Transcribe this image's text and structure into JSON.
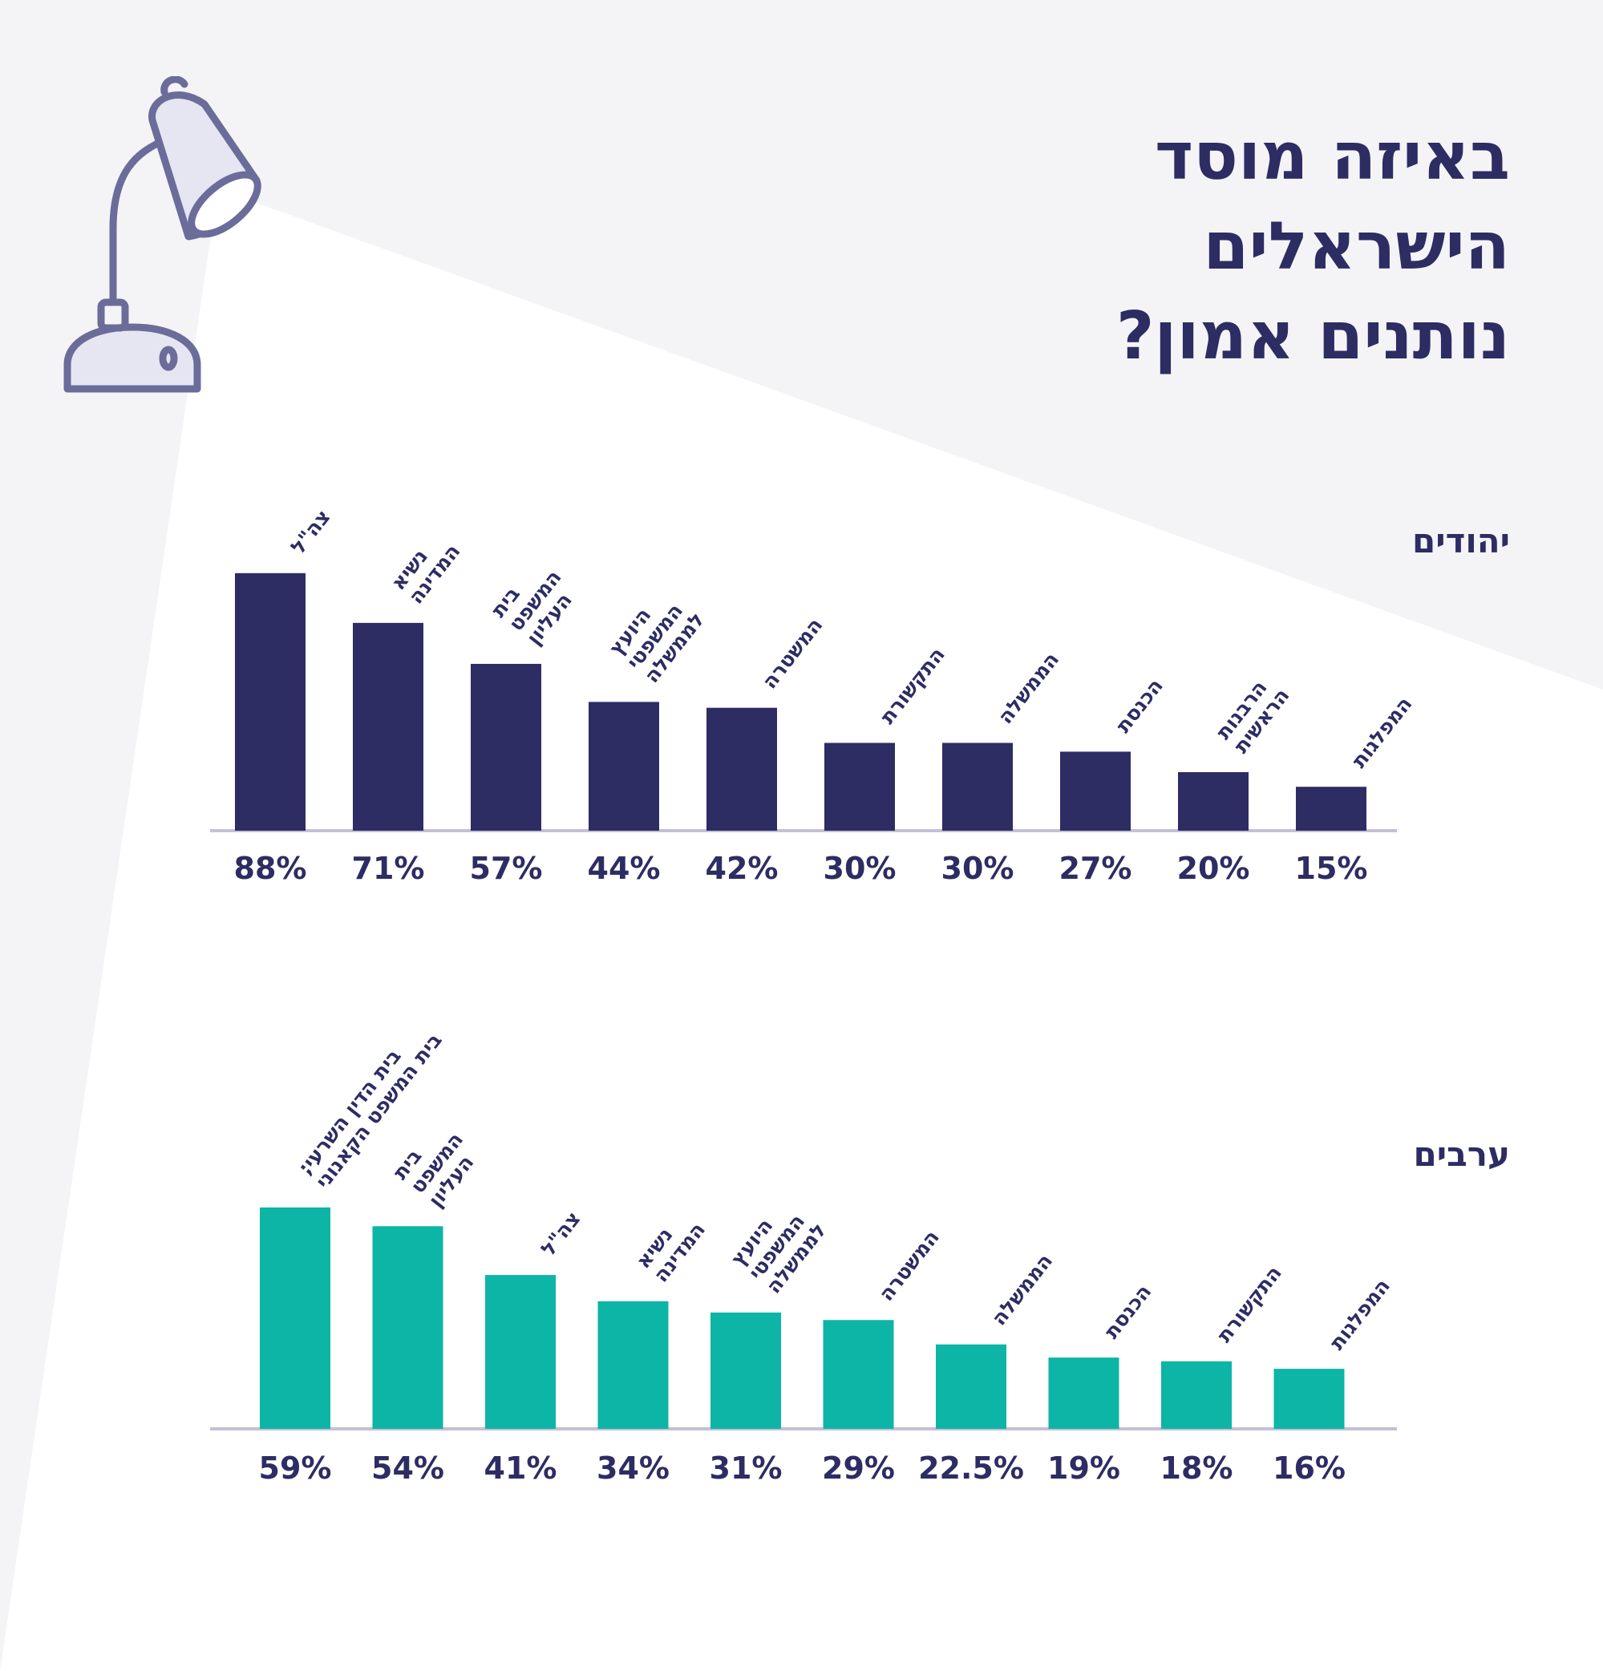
{
  "title_lines": [
    "באיזה מוסד",
    "הישראלים",
    "נותנים אמון?"
  ],
  "colors": {
    "background": "#f4f4f7",
    "beam": "#ffffff",
    "navy": "#2d2c63",
    "teal": "#0db5a6",
    "baseline": "#c4c0d8",
    "lamp_stroke": "#6b6c9a",
    "lamp_fill": "#e6e6f2"
  },
  "icons": [
    "desk-lamp-icon"
  ],
  "chart_data": [
    {
      "type": "bar",
      "group": "יהודים",
      "color": "#2d2c63",
      "categories": [
        "צה\"ל",
        "נשיא המדינה",
        "בית המשפט העליון",
        "היועץ המשפטי לממשלה",
        "המשטרה",
        "התקשורת",
        "הממשלה",
        "הכנסת",
        "הרבנות הראשית",
        "המפלגות"
      ],
      "label_lines": [
        [
          "צה\"ל"
        ],
        [
          "נשיא",
          "המדינה"
        ],
        [
          "בית",
          "המשפט",
          "העליון"
        ],
        [
          "היועץ",
          "המשפטי",
          "לממשלה"
        ],
        [
          "המשטרה"
        ],
        [
          "התקשורת"
        ],
        [
          "הממשלה"
        ],
        [
          "הכנסת"
        ],
        [
          "הרבנות",
          "הראשית"
        ],
        [
          "המפלגות"
        ]
      ],
      "values": [
        88,
        71,
        57,
        44,
        42,
        30,
        30,
        27,
        20,
        15
      ],
      "value_labels": [
        "88%",
        "71%",
        "57%",
        "44%",
        "42%",
        "30%",
        "30%",
        "27%",
        "20%",
        "15%"
      ],
      "unit": "%"
    },
    {
      "type": "bar",
      "group": "ערבים",
      "color": "#0db5a6",
      "categories": [
        "בית הדין השרעי; בית המשפט הקאנוני",
        "בית המשפט העליון",
        "צה\"ל",
        "נשיא המדינה",
        "היועץ המשפטי לממשלה",
        "המשטרה",
        "הממשלה",
        "הכנסת",
        "התקשורת",
        "המפלגות"
      ],
      "label_lines": [
        [
          "בית הדין השרעי;",
          "בית המשפט הקאנוני"
        ],
        [
          "בית",
          "המשפט",
          "העליון"
        ],
        [
          "צה\"ל"
        ],
        [
          "נשיא",
          "המדינה"
        ],
        [
          "היועץ",
          "המשפטי",
          "לממשלה"
        ],
        [
          "המשטרה"
        ],
        [
          "הממשלה"
        ],
        [
          "הכנסת"
        ],
        [
          "התקשורת"
        ],
        [
          "המפלגות"
        ]
      ],
      "values": [
        59,
        54,
        41,
        34,
        31,
        29,
        22.5,
        19,
        18,
        16
      ],
      "value_labels": [
        "59%",
        "54%",
        "41%",
        "34%",
        "31%",
        "29%",
        "22.5%",
        "19%",
        "18%",
        "16%"
      ],
      "unit": "%"
    }
  ]
}
